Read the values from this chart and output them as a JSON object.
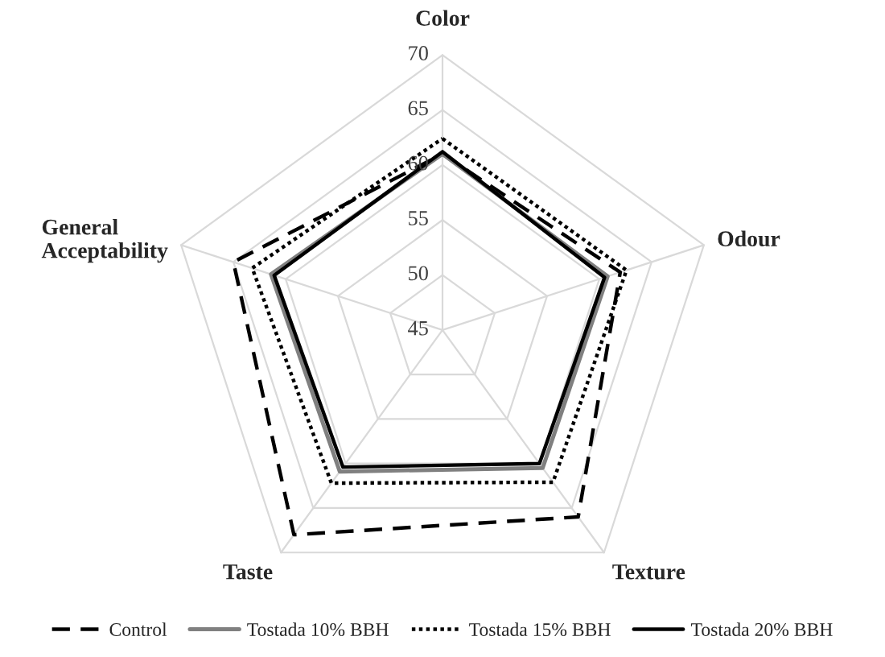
{
  "chart_data": {
    "type": "radar",
    "categories": [
      "Color",
      "Odour",
      "Texture",
      "Taste",
      "General Acceptability"
    ],
    "ylim": [
      45,
      70
    ],
    "yticks": [
      45,
      50,
      55,
      60,
      65,
      70
    ],
    "grid": true,
    "legend": "bottom",
    "marker": "none",
    "series": [
      {
        "name": "Control",
        "color": "#000000",
        "line_style": "dashed",
        "values": [
          61,
          62,
          66,
          68,
          65
        ]
      },
      {
        "name": "Tostada 10% BBH",
        "color": "#808080",
        "line_style": "solid",
        "values": [
          61,
          60.8,
          60.5,
          60.9,
          61.4
        ]
      },
      {
        "name": "Tostada 15% BBH",
        "color": "#000000",
        "line_style": "dotted",
        "values": [
          62.4,
          62.6,
          62.1,
          62.2,
          63.2
        ]
      },
      {
        "name": "Tostada 20% BBH",
        "color": "#000000",
        "line_style": "solid",
        "values": [
          61.2,
          60.5,
          60,
          60.4,
          61.1
        ]
      }
    ]
  }
}
